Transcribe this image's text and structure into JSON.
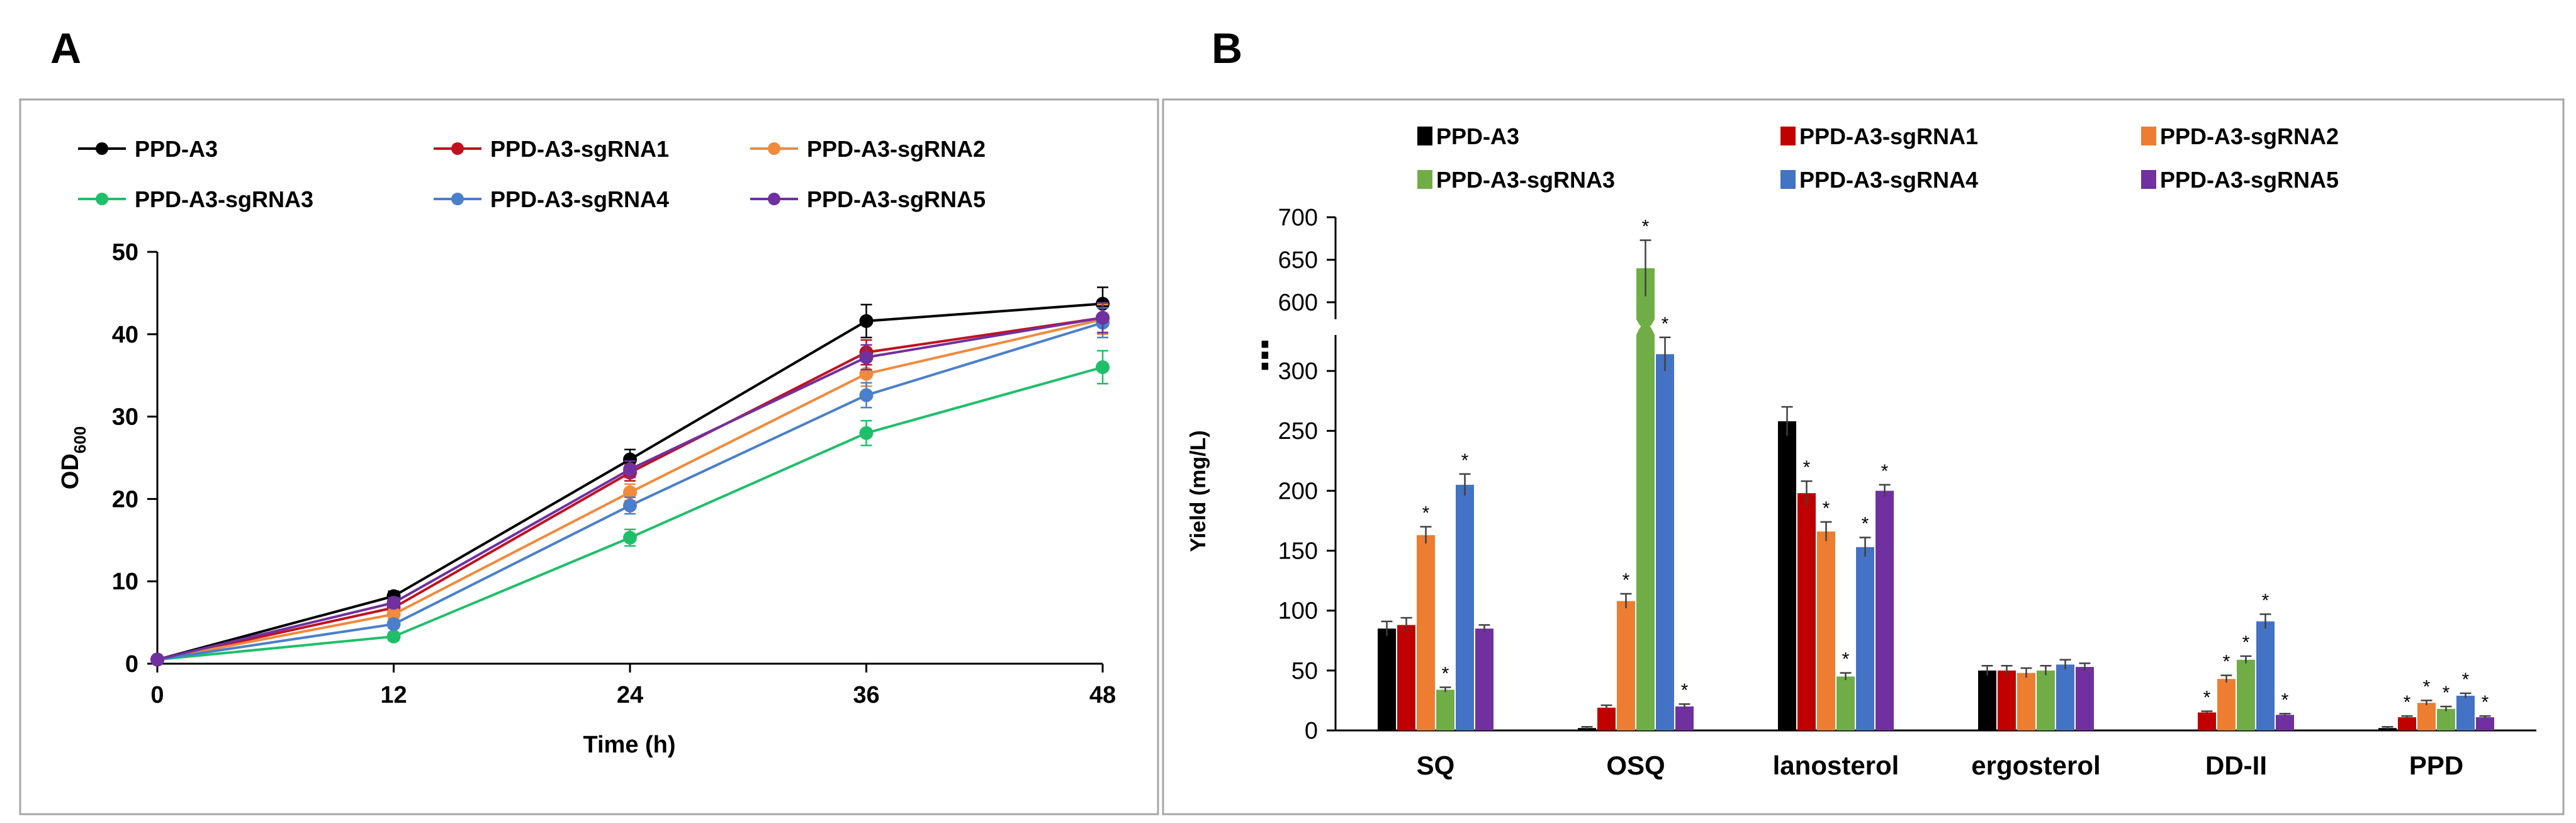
{
  "panels": [
    {
      "label": "A",
      "chart_data": {
        "type": "line",
        "title": "",
        "xlabel": "Time (h)",
        "ylabel_main": "OD",
        "ylabel_sub": "600",
        "x": [
          0,
          12,
          24,
          36,
          48
        ],
        "x_ticks": [
          "0",
          "12",
          "24",
          "36",
          "48"
        ],
        "ylim": [
          0,
          50
        ],
        "y_ticks": [
          "0",
          "10",
          "20",
          "30",
          "40",
          "50"
        ],
        "grid": false,
        "legend_position": "top",
        "series": [
          {
            "name": "PPD-A3",
            "color": "#000000",
            "values": [
              0.5,
              8.2,
              24.8,
              41.6,
              43.7
            ],
            "errors": [
              0.3,
              0.6,
              1.2,
              2.0,
              2.0
            ]
          },
          {
            "name": "PPD-A3-sgRNA1",
            "color": "#c0111f",
            "values": [
              0.5,
              6.8,
              23.2,
              37.8,
              42.0
            ],
            "errors": [
              0.3,
              0.6,
              1.0,
              1.5,
              1.8
            ]
          },
          {
            "name": "PPD-A3-sgRNA2",
            "color": "#f08a3c",
            "values": [
              0.5,
              6.0,
              20.8,
              35.2,
              41.8
            ],
            "errors": [
              0.3,
              0.6,
              1.0,
              1.5,
              1.8
            ]
          },
          {
            "name": "PPD-A3-sgRNA3",
            "color": "#1fbf6a",
            "values": [
              0.5,
              3.3,
              15.3,
              28.0,
              36.0
            ],
            "errors": [
              0.3,
              0.5,
              1.0,
              1.5,
              2.0
            ]
          },
          {
            "name": "PPD-A3-sgRNA4",
            "color": "#4a7fcb",
            "values": [
              0.5,
              4.8,
              19.2,
              32.6,
              41.4
            ],
            "errors": [
              0.3,
              0.5,
              1.0,
              1.5,
              1.8
            ]
          },
          {
            "name": "PPD-A3-sgRNA5",
            "color": "#7030a0",
            "values": [
              0.5,
              7.4,
              23.6,
              37.2,
              42.0
            ],
            "errors": [
              0.3,
              0.6,
              1.0,
              1.5,
              1.8
            ]
          }
        ]
      }
    },
    {
      "label": "B",
      "chart_data": {
        "type": "bar",
        "title": "",
        "xlabel": "",
        "ylabel": "Yield (mg/L)",
        "categories": [
          "SQ",
          "OSQ",
          "lanosterol",
          "ergosterol",
          "DD-II",
          "PPD"
        ],
        "y_ticks_lower": [
          "0",
          "50",
          "100",
          "150",
          "200",
          "250",
          "300"
        ],
        "y_ticks_upper": [
          "600",
          "650",
          "700"
        ],
        "ylim_lower": [
          0,
          330
        ],
        "ylim_upper": [
          580,
          700
        ],
        "axis_break_mark": "⋮",
        "significance_mark": "*",
        "grid": false,
        "legend_position": "top",
        "series": [
          {
            "name": "PPD-A3",
            "color": "#000000",
            "values": [
              85,
              2,
              258,
              50,
              0,
              2
            ],
            "errors": [
              6,
              1,
              12,
              4,
              0,
              1
            ],
            "significant": [
              false,
              false,
              false,
              false,
              false,
              false
            ]
          },
          {
            "name": "PPD-A3-sgRNA1",
            "color": "#c00000",
            "values": [
              88,
              19,
              198,
              50,
              15,
              11
            ],
            "errors": [
              6,
              2,
              10,
              4,
              1,
              1
            ],
            "significant": [
              false,
              false,
              true,
              false,
              true,
              true
            ]
          },
          {
            "name": "PPD-A3-sgRNA2",
            "color": "#ed7d31",
            "values": [
              163,
              108,
              166,
              48,
              43,
              23
            ],
            "errors": [
              7,
              6,
              8,
              4,
              3,
              2
            ],
            "significant": [
              true,
              true,
              true,
              false,
              true,
              true
            ]
          },
          {
            "name": "PPD-A3-sgRNA3",
            "color": "#70ad47",
            "values": [
              34,
              640,
              45,
              50,
              59,
              18
            ],
            "errors": [
              2,
              33,
              3,
              4,
              3,
              2
            ],
            "significant": [
              true,
              true,
              true,
              false,
              true,
              true
            ]
          },
          {
            "name": "PPD-A3-sgRNA4",
            "color": "#4472c4",
            "values": [
              205,
              314,
              153,
              55,
              91,
              29
            ],
            "errors": [
              9,
              14,
              8,
              4,
              6,
              2
            ],
            "significant": [
              true,
              true,
              true,
              false,
              true,
              true
            ]
          },
          {
            "name": "PPD-A3-sgRNA5",
            "color": "#7030a0",
            "values": [
              85,
              20,
              200,
              53,
              13,
              11
            ],
            "errors": [
              3,
              2,
              5,
              3,
              1,
              1
            ],
            "significant": [
              false,
              true,
              true,
              false,
              true,
              true
            ]
          }
        ]
      }
    }
  ]
}
